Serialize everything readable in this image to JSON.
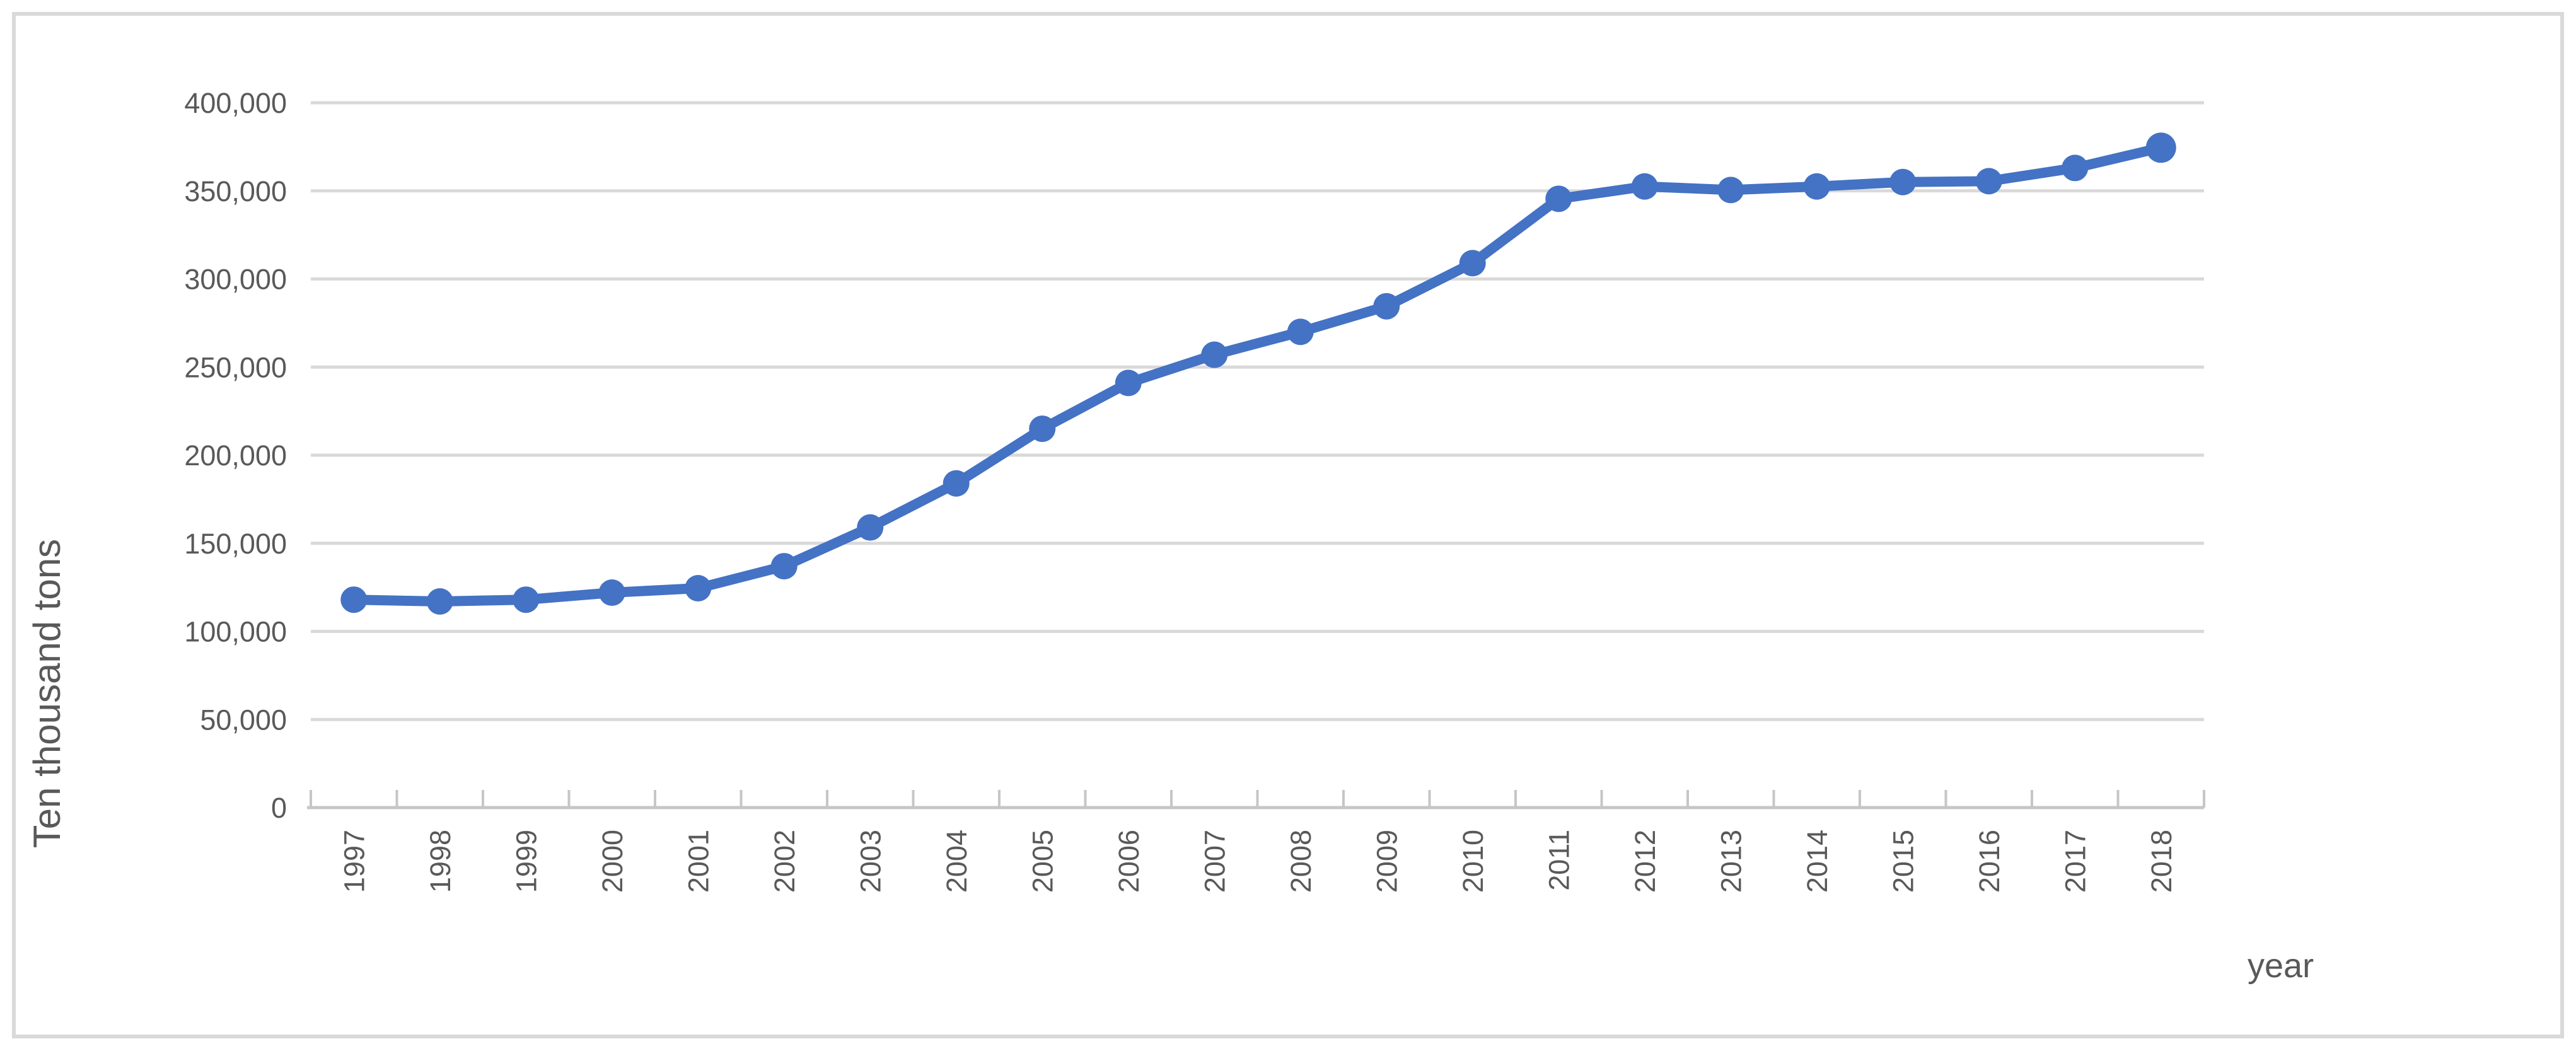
{
  "chart_data": {
    "type": "line",
    "title": "",
    "categories": [
      "1997",
      "1998",
      "1999",
      "2000",
      "2001",
      "2002",
      "2003",
      "2004",
      "2005",
      "2006",
      "2007",
      "2008",
      "2009",
      "2010",
      "2011",
      "2012",
      "2013",
      "2014",
      "2015",
      "2016",
      "2017",
      "2018"
    ],
    "values": [
      118000,
      117000,
      118000,
      122000,
      124500,
      137000,
      159000,
      184000,
      215000,
      241000,
      257000,
      270000,
      284500,
      309000,
      345500,
      352500,
      350500,
      352500,
      355000,
      355500,
      363000,
      374500
    ],
    "xlabel": "year",
    "ylabel": "Ten thousand tons",
    "ylim": [
      0,
      400000
    ],
    "y_tick_step": 50000,
    "y_ticks": [
      {
        "value": 0,
        "label": "0"
      },
      {
        "value": 50000,
        "label": "50,000"
      },
      {
        "value": 100000,
        "label": "100,000"
      },
      {
        "value": 150000,
        "label": "150,000"
      },
      {
        "value": 200000,
        "label": "200,000"
      },
      {
        "value": 250000,
        "label": "250,000"
      },
      {
        "value": 300000,
        "label": "300,000"
      },
      {
        "value": 350000,
        "label": "350,000"
      },
      {
        "value": 400000,
        "label": "400,000"
      }
    ],
    "grid": "horizontal",
    "legend_position": "none",
    "marker": "circle"
  },
  "colors": {
    "series_line": "#4472C4",
    "gridline": "#D9D9D9",
    "axis_line": "#C6C6C6",
    "tick_text": "#595959",
    "frame_border": "#D9D9D9",
    "background": "#FFFFFF"
  }
}
